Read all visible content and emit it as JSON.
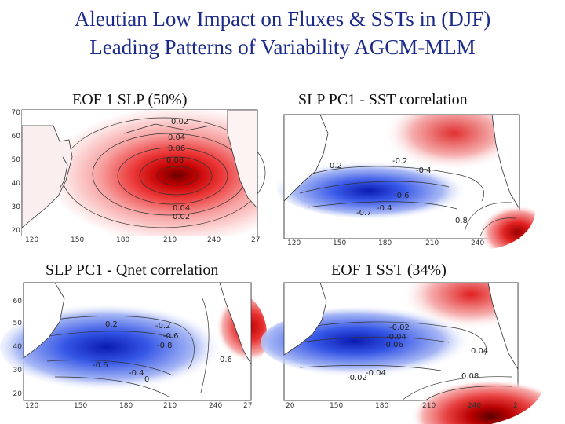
{
  "slide": {
    "title_line1": "Aleutian Low Impact on Fluxes & SSTs in (DJF)",
    "title_line2": "Leading Patterns of Variability AGCM-MLM"
  },
  "panels": [
    {
      "title": "EOF 1 SLP (50%)",
      "lat_ticks": [
        "70",
        "60",
        "50",
        "40",
        "30",
        "20"
      ],
      "lon_ticks": [
        "120",
        "150",
        "180",
        "210",
        "240",
        "27"
      ],
      "contour_labels": [
        "0.02",
        "0.04",
        "0.06",
        "0.08",
        "0.04",
        "0.02"
      ],
      "lobes": [
        {
          "type": "pos",
          "strength": 1.0
        }
      ]
    },
    {
      "title": "SLP PC1 - SST correlation",
      "lat_ticks": [],
      "lon_ticks": [
        "120",
        "150",
        "180",
        "210",
        "240"
      ],
      "contour_labels": [
        "0.2",
        "-0.2",
        "-0.4",
        "-0.6",
        "-0.4",
        "-0.7",
        "0.8"
      ],
      "lobes": [
        {
          "type": "neg",
          "strength": 1.0
        },
        {
          "type": "pos",
          "strength": 1.0
        }
      ]
    },
    {
      "title": "SLP PC1 - Qnet correlation",
      "lat_ticks": [
        "60",
        "50",
        "40",
        "30",
        "20"
      ],
      "lon_ticks": [
        "120",
        "150",
        "180",
        "210",
        "240",
        "27"
      ],
      "contour_labels": [
        "0.2",
        "-0.2",
        "-0.6",
        "-0.8",
        "0.6",
        "-0.6",
        "-0.4",
        "0"
      ],
      "lobes": [
        {
          "type": "neg",
          "strength": 1.0
        },
        {
          "type": "pos",
          "strength": 1.0
        }
      ]
    },
    {
      "title": "EOF 1 SST (34%)",
      "lat_ticks": [],
      "lon_ticks": [
        "20",
        "150",
        "180",
        "210",
        "240",
        "2"
      ],
      "contour_labels": [
        "-0.02",
        "-0.04",
        "-0.06",
        "0.04",
        "-0.04",
        "-0.02",
        "0.08"
      ],
      "lobes": [
        {
          "type": "neg",
          "strength": 1.0
        },
        {
          "type": "pos",
          "strength": 1.0
        }
      ]
    }
  ],
  "colors": {
    "positive": "#d7191c",
    "negative": "#1f3fd6",
    "title_text": "#1c2a8a"
  }
}
